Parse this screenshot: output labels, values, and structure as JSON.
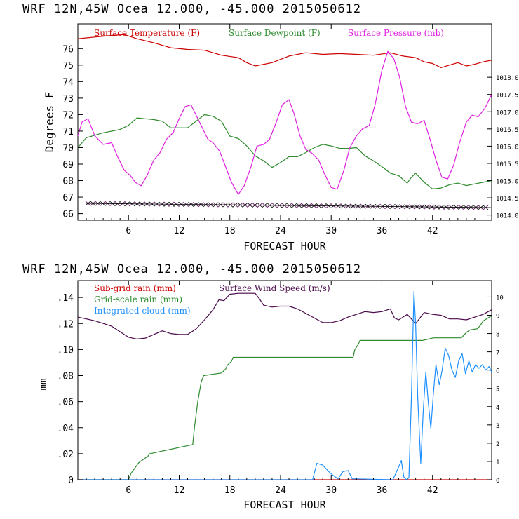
{
  "chart_data": [
    {
      "type": "line",
      "title": "WRF   12N,45W Ocea  12.000, -45.000  2015050612",
      "xlabel": "FORECAST HOUR",
      "ylabel": "Degrees F",
      "xlim": [
        0,
        49
      ],
      "xticks": [
        6,
        12,
        18,
        24,
        30,
        36,
        42
      ],
      "ylim": [
        65.6,
        77.5
      ],
      "yticks": [
        66,
        67,
        68,
        69,
        70,
        71,
        72,
        73,
        74,
        75,
        76
      ],
      "y2lim": [
        1013.85,
        1019.55
      ],
      "y2ticks": [
        "1014.0",
        "1014.5",
        "1015.0",
        "1015.5",
        "1016.0",
        "1016.5",
        "1017.0",
        "1017.5",
        "1018.0"
      ],
      "legend_position": "top",
      "series": [
        {
          "name": "Surface Temperature (F)",
          "color": "#cc0000",
          "axis": "left",
          "x": [
            0,
            2,
            4,
            5.5,
            7,
            9,
            11,
            13,
            15,
            17,
            19,
            20,
            21,
            23,
            25,
            27,
            29,
            31,
            33,
            35,
            37,
            38.5,
            40,
            41,
            42,
            43,
            44,
            45,
            46,
            47,
            48,
            49
          ],
          "y": [
            76.6,
            76.7,
            76.8,
            76.85,
            76.6,
            76.35,
            76.05,
            75.95,
            75.9,
            75.6,
            75.45,
            75.15,
            74.95,
            75.15,
            75.55,
            75.75,
            75.65,
            75.7,
            75.65,
            75.6,
            75.75,
            75.55,
            75.45,
            75.2,
            75.1,
            74.85,
            75.0,
            75.15,
            74.95,
            75.05,
            75.2,
            75.3
          ]
        },
        {
          "name": "Surface Dewpoint (F)",
          "color": "#2e8b2e",
          "axis": "left",
          "x": [
            0,
            1,
            3,
            5,
            6,
            7,
            8,
            9,
            10,
            11,
            12,
            13,
            14,
            15,
            16,
            17,
            18,
            19,
            20,
            21,
            22,
            23,
            24,
            25,
            26,
            27,
            28,
            29,
            30,
            31,
            32,
            33,
            34,
            35,
            36,
            37,
            38,
            39,
            39.5,
            40,
            41,
            42,
            43,
            44,
            45,
            46,
            47,
            48,
            49
          ],
          "y": [
            70.0,
            70.6,
            70.9,
            71.1,
            71.35,
            71.8,
            71.75,
            71.7,
            71.6,
            71.2,
            71.2,
            71.2,
            71.6,
            72.0,
            71.9,
            71.6,
            70.7,
            70.55,
            70.1,
            69.5,
            69.2,
            68.8,
            69.1,
            69.45,
            69.45,
            69.7,
            70.0,
            70.2,
            70.1,
            69.95,
            69.95,
            70.0,
            69.5,
            69.2,
            68.85,
            68.45,
            68.3,
            67.85,
            68.2,
            68.45,
            67.9,
            67.5,
            67.55,
            67.75,
            67.85,
            67.7,
            67.8,
            67.9,
            68.0
          ]
        },
        {
          "name": "Surface Pressure (mb)",
          "color": "#e020e0",
          "axis": "right",
          "x": [
            0,
            0.5,
            1.2,
            2,
            3,
            4,
            4.7,
            5.5,
            6.2,
            6.8,
            7.5,
            8.2,
            9,
            9.7,
            10.5,
            11.3,
            12,
            12.7,
            13.4,
            14,
            14.7,
            15.4,
            16,
            16.8,
            17.5,
            18.2,
            19,
            19.7,
            20.5,
            21.2,
            22,
            22.7,
            23.5,
            24.2,
            25,
            25.6,
            26.3,
            27,
            27.7,
            28.5,
            29.2,
            30,
            30.7,
            31.5,
            32.2,
            33,
            33.7,
            34.5,
            35.2,
            36,
            36.7,
            37.4,
            38.1,
            38.8,
            39.5,
            40.2,
            41,
            41.7,
            42.4,
            43.1,
            43.8,
            44.5,
            45.2,
            46,
            46.7,
            47.4,
            48.2,
            49
          ],
          "y": [
            1016.3,
            1016.7,
            1016.8,
            1016.3,
            1016.05,
            1016.1,
            1015.7,
            1015.3,
            1015.15,
            1014.95,
            1014.85,
            1015.15,
            1015.6,
            1015.8,
            1016.2,
            1016.4,
            1016.8,
            1017.15,
            1017.2,
            1016.9,
            1016.55,
            1016.2,
            1016.1,
            1015.85,
            1015.4,
            1014.95,
            1014.6,
            1014.85,
            1015.4,
            1016.0,
            1016.05,
            1016.2,
            1016.7,
            1017.2,
            1017.35,
            1016.95,
            1016.3,
            1015.9,
            1015.8,
            1015.6,
            1015.2,
            1014.8,
            1014.75,
            1015.3,
            1015.95,
            1016.3,
            1016.5,
            1016.6,
            1017.2,
            1018.2,
            1018.75,
            1018.55,
            1018.0,
            1017.15,
            1016.7,
            1016.65,
            1016.75,
            1016.2,
            1015.6,
            1015.1,
            1015.05,
            1015.45,
            1016.1,
            1016.7,
            1016.9,
            1016.85,
            1017.1,
            1017.5
          ]
        }
      ]
    },
    {
      "type": "line",
      "title": "WRF   12N,45W Ocea  12.000, -45.000  2015050612",
      "xlabel": "FORECAST HOUR",
      "ylabel": "mm",
      "xlim": [
        0,
        49
      ],
      "xticks": [
        6,
        12,
        18,
        24,
        30,
        36,
        42
      ],
      "ylim": [
        0,
        0.153
      ],
      "yticks": [
        "0",
        ".02",
        ".04",
        ".06",
        ".08",
        ".10",
        ".12",
        ".14"
      ],
      "y2lim": [
        0,
        10.9
      ],
      "y2ticks": [
        "0",
        "1",
        "2",
        "3",
        "4",
        "5",
        "6",
        "7",
        "8",
        "9",
        "10"
      ],
      "legend_position": "top-left",
      "series": [
        {
          "name": "Sub-grid rain (mm)",
          "color": "#cc0000",
          "axis": "left",
          "x": [
            0,
            49
          ],
          "y": [
            0,
            0
          ]
        },
        {
          "name": "Surface Wind Speed (m/s)",
          "color": "#4b0a4b",
          "axis": "right",
          "x": [
            0,
            2,
            4,
            5,
            6,
            7,
            8,
            9,
            10,
            11,
            12,
            13,
            14,
            15,
            16,
            16.7,
            17.3,
            18,
            19,
            20,
            21,
            21.5,
            22,
            23,
            24,
            25,
            26,
            27,
            28,
            29,
            30,
            31,
            32,
            33,
            34,
            35,
            36,
            37,
            37.5,
            38,
            39,
            40,
            41,
            42,
            43,
            44,
            45,
            46,
            47,
            48,
            49
          ],
          "y": [
            8.9,
            8.7,
            8.4,
            8.1,
            7.8,
            7.7,
            7.75,
            7.95,
            8.15,
            8.0,
            7.95,
            7.95,
            8.25,
            8.75,
            9.3,
            9.85,
            9.8,
            10.15,
            10.2,
            10.2,
            10.2,
            9.9,
            9.55,
            9.45,
            9.5,
            9.5,
            9.35,
            9.1,
            8.85,
            8.6,
            8.6,
            8.7,
            8.9,
            9.05,
            9.2,
            9.15,
            9.2,
            9.35,
            8.85,
            8.75,
            9.05,
            8.55,
            9.15,
            9.05,
            9.0,
            8.8,
            8.8,
            8.75,
            8.9,
            9.05,
            9.3
          ]
        },
        {
          "name": "Grid-scale rain (mm)",
          "color": "#2e8b2e",
          "axis": "left",
          "x": [
            0,
            6,
            6.3,
            7.2,
            7.6,
            8.3,
            8.5,
            13.6,
            13.8,
            14.2,
            14.6,
            14.9,
            17.0,
            17.5,
            17.7,
            18.2,
            18.4,
            32.6,
            32.8,
            33.2,
            33.4,
            40.8,
            41.5,
            42.1,
            43.2,
            44,
            45.4,
            46.0,
            46.4,
            47.3,
            47.6,
            48.0,
            49
          ],
          "y": [
            0,
            0,
            0.005,
            0.013,
            0.015,
            0.018,
            0.02,
            0.027,
            0.04,
            0.06,
            0.075,
            0.08,
            0.082,
            0.085,
            0.088,
            0.091,
            0.094,
            0.094,
            0.1,
            0.104,
            0.107,
            0.107,
            0.108,
            0.109,
            0.109,
            0.109,
            0.109,
            0.113,
            0.115,
            0.116,
            0.118,
            0.122,
            0.126
          ]
        },
        {
          "name": "Integrated cloud (mm)",
          "color": "#1e90ff",
          "axis": "right",
          "x": [
            0,
            27.8,
            28.3,
            29.0,
            29.7,
            30.2,
            30.8,
            31.4,
            32.0,
            32.5,
            37.3,
            37.8,
            38.3,
            38.6,
            38.9,
            39.2,
            39.5,
            39.8,
            40.0,
            40.25,
            40.6,
            40.9,
            41.2,
            41.5,
            41.8,
            42.1,
            42.4,
            42.8,
            43.1,
            43.5,
            43.9,
            44.3,
            44.7,
            45.1,
            45.5,
            45.9,
            46.3,
            46.7,
            47.1,
            47.5,
            47.9,
            48.3,
            48.7,
            49
          ],
          "y": [
            0,
            0,
            0.9,
            0.8,
            0.45,
            0.25,
            0.05,
            0.45,
            0.5,
            0.05,
            0,
            0.5,
            1.05,
            0.15,
            0,
            0.1,
            4.5,
            10.3,
            8.5,
            4.5,
            0.9,
            3.8,
            5.9,
            4.2,
            2.8,
            4.7,
            6.3,
            5.2,
            5.9,
            7.2,
            6.8,
            6.0,
            5.6,
            6.5,
            6.9,
            5.8,
            6.5,
            5.9,
            6.3,
            6.1,
            6.3,
            6.0,
            6.2,
            5.9
          ]
        }
      ]
    }
  ]
}
